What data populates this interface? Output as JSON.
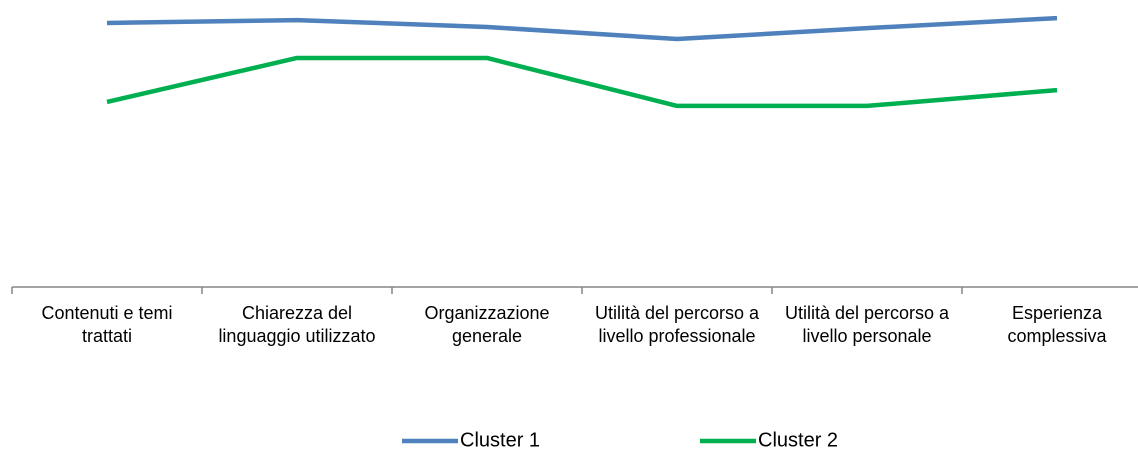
{
  "chart_data": {
    "type": "line",
    "categories": [
      "Contenuti e temi trattati",
      "Chiarezza del linguaggio utilizzato",
      "Organizzazione generale",
      "Utilità del percorso a livello professionale",
      "Utilità del percorso a livello personale",
      "Esperienza complessiva"
    ],
    "series": [
      {
        "name": "Cluster 1",
        "color": "#4f81bd",
        "values": [
          92.0,
          93.0,
          90.6,
          86.4,
          90.2,
          93.7
        ]
      },
      {
        "name": "Cluster 2",
        "color": "#00b050",
        "values": [
          64.5,
          79.8,
          79.8,
          63.1,
          63.1,
          68.6
        ]
      }
    ],
    "ylim": [
      0,
      100
    ],
    "legend": "bottom"
  }
}
